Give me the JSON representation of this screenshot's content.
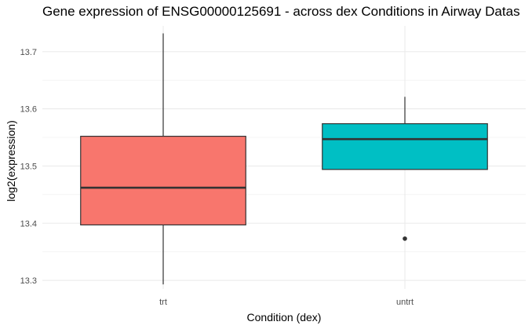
{
  "chart_data": {
    "type": "boxplot",
    "title": "Gene expression of ENSG00000125691 - across dex Conditions in Airway Datas",
    "xlabel": "Condition (dex)",
    "ylabel": "log2(expression)",
    "categories": [
      "trt",
      "untrt"
    ],
    "ylim": [
      13.285,
      13.745
    ],
    "y_ticks": [
      13.3,
      13.4,
      13.5,
      13.6,
      13.7
    ],
    "y_tick_labels": [
      "13.3",
      "13.4",
      "13.5",
      "13.6",
      "13.7"
    ],
    "grid": true,
    "legend": "none",
    "boxes": [
      {
        "category": "trt",
        "whisker_low": 13.293,
        "q1": 13.397,
        "median": 13.462,
        "q3": 13.552,
        "whisker_high": 13.732,
        "outliers": [],
        "color": "#F8766D"
      },
      {
        "category": "untrt",
        "whisker_low": 13.494,
        "q1": 13.494,
        "median": 13.547,
        "q3": 13.574,
        "whisker_high": 13.621,
        "outliers": [
          13.373
        ],
        "color": "#00BFC4"
      }
    ]
  }
}
